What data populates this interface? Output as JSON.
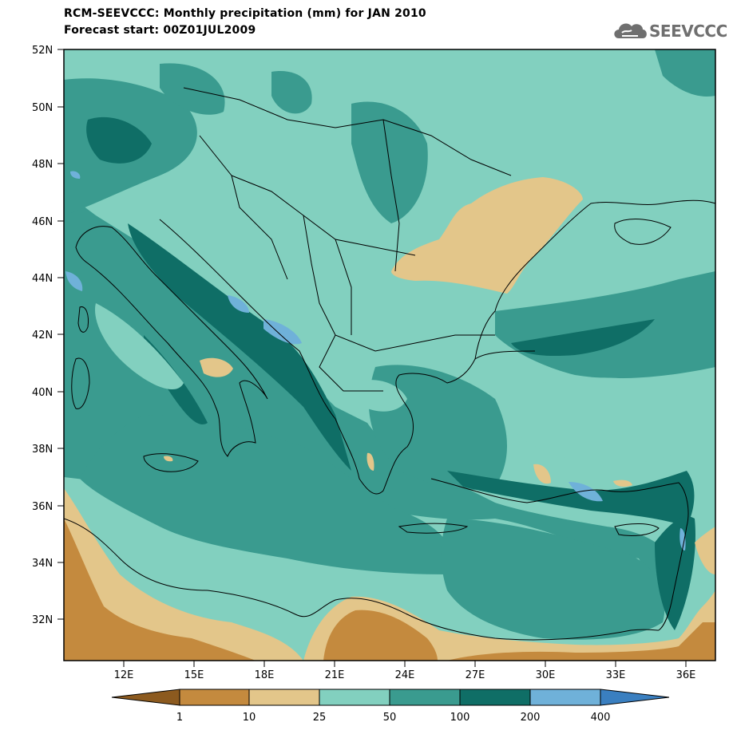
{
  "title": {
    "line1": "RCM-SEEVCCC: Monthly precipitation (mm) for JAN 2010",
    "line2": "Forecast start: 00Z01JUL2009"
  },
  "logo": {
    "text": "SEEVCCC"
  },
  "axes": {
    "lat_ticks": [
      "52N",
      "50N",
      "48N",
      "46N",
      "44N",
      "42N",
      "40N",
      "38N",
      "36N",
      "34N",
      "32N"
    ],
    "lon_ticks": [
      "12E",
      "15E",
      "18E",
      "21E",
      "24E",
      "27E",
      "30E",
      "33E",
      "36E"
    ]
  },
  "colorbar": {
    "labels": [
      "1",
      "10",
      "25",
      "50",
      "100",
      "200",
      "400"
    ],
    "colors": [
      "#8c5a1f",
      "#c48a3e",
      "#e3c68a",
      "#82d0bf",
      "#3a9b8f",
      "#0f6e66",
      "#6fb1d9",
      "#3a7fc0"
    ]
  },
  "palette": {
    "land_base": "#82d0bf",
    "wet": "#3a9b8f",
    "very_wet": "#0f6e66",
    "dry": "#e3c68a",
    "very_dry": "#c48a3e",
    "arid": "#8c5a1f",
    "extreme": "#6fb1d9"
  }
}
